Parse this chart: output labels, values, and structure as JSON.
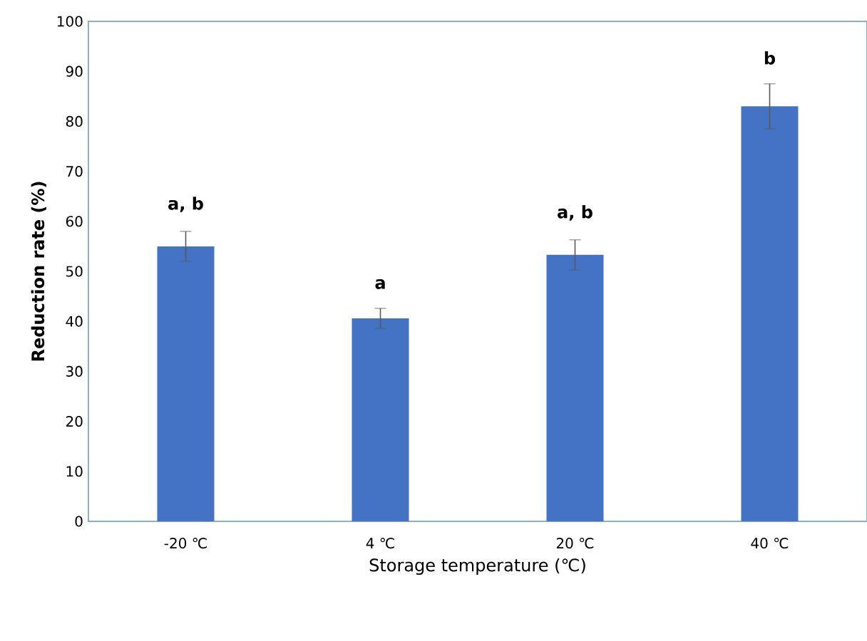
{
  "chart_data": {
    "type": "bar",
    "xlabel": "Storage temperature (℃)",
    "ylabel": "Reduction rate (%)",
    "categories": [
      "-20 ℃",
      "4 ℃",
      "20 ℃",
      "40 ℃"
    ],
    "values": [
      55,
      40.6,
      53.3,
      83
    ],
    "errors": [
      3,
      2,
      3,
      4.5
    ],
    "color": "#4472c4",
    "ylim": [
      0,
      100
    ],
    "yticks": [
      0,
      10,
      20,
      30,
      40,
      50,
      60,
      70,
      80,
      90,
      100
    ],
    "grid": false,
    "annotations": [
      "a, b",
      "a",
      "a, b",
      "b"
    ]
  }
}
